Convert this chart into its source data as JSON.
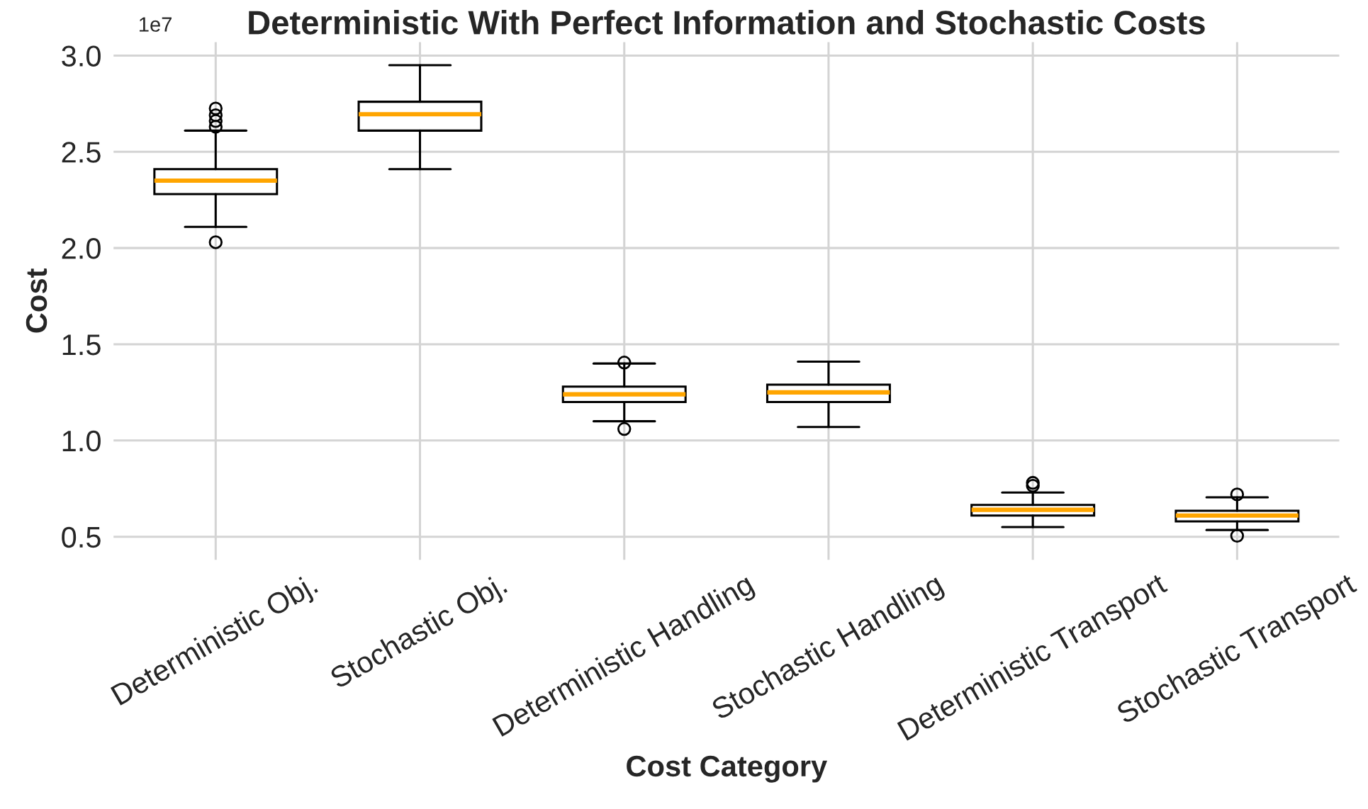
{
  "chart_data": {
    "type": "box",
    "title": "Deterministic With Perfect Information and Stochastic Costs",
    "xlabel": "Cost Category",
    "ylabel": "Cost",
    "annotations": [
      "1e7"
    ],
    "categories": [
      "Deterministic Obj.",
      "Stochastic Obj.",
      "Deterministic Handling",
      "Stochastic Handling",
      "Deterministic Transport",
      "Stochastic Transport"
    ],
    "boxes": [
      {
        "low": 2.11,
        "q1": 2.28,
        "median": 2.35,
        "q3": 2.41,
        "high": 2.61,
        "outliers": [
          2.725,
          2.69,
          2.66,
          2.63,
          2.03
        ]
      },
      {
        "low": 2.41,
        "q1": 2.61,
        "median": 2.695,
        "q3": 2.76,
        "high": 2.95
      },
      {
        "low": 1.1,
        "q1": 1.2,
        "median": 1.24,
        "q3": 1.28,
        "high": 1.4,
        "outliers": [
          1.405,
          1.06
        ]
      },
      {
        "low": 1.07,
        "q1": 1.2,
        "median": 1.25,
        "q3": 1.29,
        "high": 1.41
      },
      {
        "low": 0.55,
        "q1": 0.61,
        "median": 0.64,
        "q3": 0.665,
        "high": 0.73,
        "outliers": [
          0.78,
          0.765
        ]
      },
      {
        "low": 0.535,
        "q1": 0.58,
        "median": 0.61,
        "q3": 0.635,
        "high": 0.705,
        "outliers": [
          0.72,
          0.505
        ]
      }
    ],
    "ylim": [
      0.38,
      3.07
    ],
    "yticks": [
      0.5,
      {
        "value": 1,
        "label": "1.0"
      },
      1.5,
      {
        "value": 2,
        "label": "2.0"
      },
      2.5,
      {
        "value": 3,
        "label": "3.0"
      }
    ],
    "grid": true
  }
}
